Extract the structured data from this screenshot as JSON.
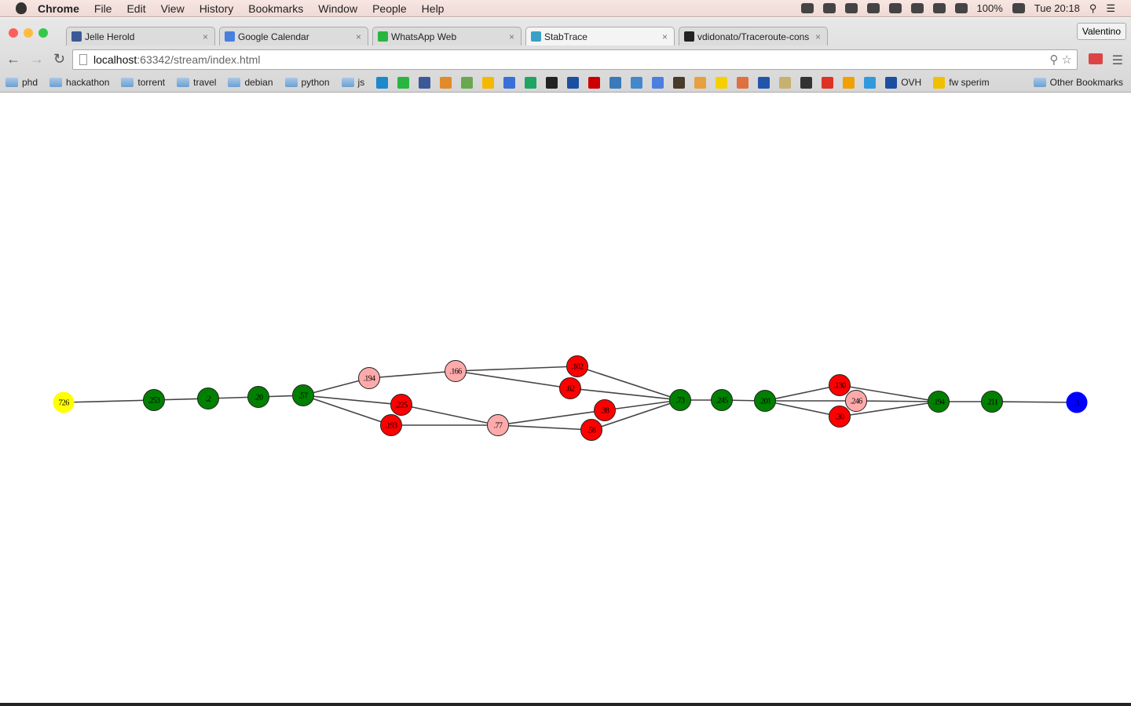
{
  "menubar": {
    "app": "Chrome",
    "items": [
      "File",
      "Edit",
      "View",
      "History",
      "Bookmarks",
      "Window",
      "People",
      "Help"
    ],
    "battery": "100%",
    "clock": "Tue 20:18"
  },
  "browser": {
    "profile": "Valentino",
    "tabs": [
      {
        "title": "Jelle Herold",
        "favicon_color": "#3b5998",
        "active": false
      },
      {
        "title": "Google Calendar",
        "favicon_color": "#4a7fe0",
        "active": false
      },
      {
        "title": "WhatsApp Web",
        "favicon_color": "#2ab540",
        "active": false
      },
      {
        "title": "StabTrace",
        "favicon_color": "#3aa0c8",
        "active": true
      },
      {
        "title": "vdidonato/Traceroute-cons",
        "favicon_color": "#222222",
        "active": false
      }
    ],
    "url_host": "localhost",
    "url_path": ":63342/stream/index.html",
    "bookmark_folders": [
      "phd",
      "hackathon",
      "torrent",
      "travel",
      "debian",
      "python",
      "js"
    ],
    "bookmark_icons": [
      "#1e88c8",
      "#2ab540",
      "#3b5998",
      "#e08a2a",
      "#6aa84f",
      "#f5b800",
      "#3a6fd8",
      "#1fa463",
      "#222222",
      "#1d4fa0",
      "#cc0000",
      "#3a7ab8",
      "#4488cc",
      "#4a7fe0",
      "#4a3a2a",
      "#e6a040",
      "#f5d000",
      "#e07040",
      "#2255aa",
      "#c8b070",
      "#333333",
      "#dd3322",
      "#f0a000",
      "#3399dd"
    ],
    "bookmark_links": [
      {
        "label": "OVH",
        "color": "#1d4fa0"
      },
      {
        "label": "fw sperim",
        "color": "#f0c000"
      }
    ],
    "other_bookmarks": "Other Bookmarks"
  },
  "graph": {
    "colors": {
      "green": "#008000",
      "red": "#ff0000",
      "pink": "#ffaaaa",
      "yellow": "#ffff00",
      "blue": "#0000ff"
    },
    "nodes": [
      {
        "id": "n726",
        "label": "726",
        "color": "yellow"
      },
      {
        "id": "n253",
        "label": ".253",
        "color": "green"
      },
      {
        "id": "n2",
        "label": ".2",
        "color": "green"
      },
      {
        "id": "n20",
        "label": ".20",
        "color": "green"
      },
      {
        "id": "n57",
        "label": ".57",
        "color": "green"
      },
      {
        "id": "n194a",
        "label": ".194",
        "color": "pink"
      },
      {
        "id": "n166",
        "label": ".166",
        "color": "pink"
      },
      {
        "id": "n102",
        "label": ".102",
        "color": "red"
      },
      {
        "id": "n62",
        "label": ".62",
        "color": "red"
      },
      {
        "id": "n225",
        "label": ".225",
        "color": "red"
      },
      {
        "id": "n193",
        "label": ".193",
        "color": "red"
      },
      {
        "id": "n77",
        "label": ".77",
        "color": "pink"
      },
      {
        "id": "n38",
        "label": ".38",
        "color": "red"
      },
      {
        "id": "n58",
        "label": ".58",
        "color": "red"
      },
      {
        "id": "n73",
        "label": ".73",
        "color": "green"
      },
      {
        "id": "n245",
        "label": ".245",
        "color": "green"
      },
      {
        "id": "n201",
        "label": ".201",
        "color": "green"
      },
      {
        "id": "n130",
        "label": ".130",
        "color": "red"
      },
      {
        "id": "n246",
        "label": ".246",
        "color": "pink"
      },
      {
        "id": "n30",
        "label": ".30",
        "color": "red"
      },
      {
        "id": "n194b",
        "label": ".194",
        "color": "green"
      },
      {
        "id": "n211",
        "label": ".211",
        "color": "green"
      },
      {
        "id": "n1",
        "label": ".1",
        "color": "blue"
      }
    ],
    "edges": [
      [
        "n726",
        "n253"
      ],
      [
        "n253",
        "n2"
      ],
      [
        "n2",
        "n20"
      ],
      [
        "n20",
        "n57"
      ],
      [
        "n57",
        "n194a"
      ],
      [
        "n57",
        "n225"
      ],
      [
        "n57",
        "n193"
      ],
      [
        "n194a",
        "n166"
      ],
      [
        "n166",
        "n102"
      ],
      [
        "n166",
        "n62"
      ],
      [
        "n225",
        "n77"
      ],
      [
        "n193",
        "n77"
      ],
      [
        "n77",
        "n38"
      ],
      [
        "n77",
        "n58"
      ],
      [
        "n102",
        "n73"
      ],
      [
        "n62",
        "n73"
      ],
      [
        "n38",
        "n73"
      ],
      [
        "n58",
        "n73"
      ],
      [
        "n73",
        "n245"
      ],
      [
        "n245",
        "n201"
      ],
      [
        "n201",
        "n130"
      ],
      [
        "n201",
        "n246"
      ],
      [
        "n201",
        "n30"
      ],
      [
        "n130",
        "n194b"
      ],
      [
        "n246",
        "n194b"
      ],
      [
        "n30",
        "n194b"
      ],
      [
        "n194b",
        "n211"
      ],
      [
        "n211",
        "n1"
      ]
    ]
  }
}
